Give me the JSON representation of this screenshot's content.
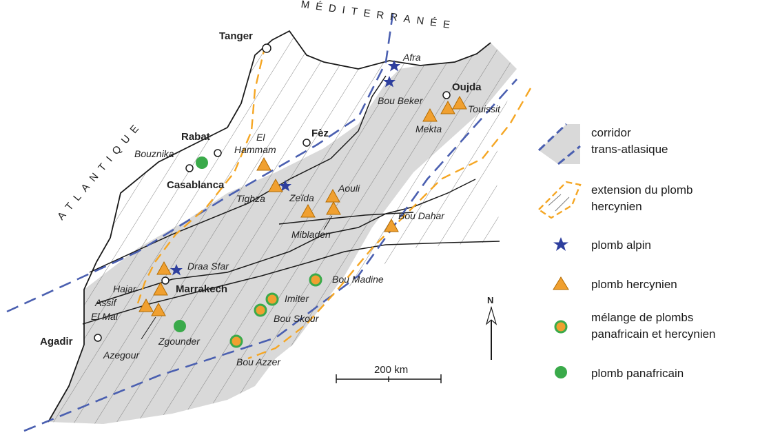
{
  "seas": {
    "mediterranean": "MÉDITERRANÉE",
    "atlantic": "ATLANTIQUE"
  },
  "cities": {
    "tanger": "Tanger",
    "rabat": "Rabat",
    "casablanca": "Casablanca",
    "fez": "Fèz",
    "oujda": "Oujda",
    "marrakech": "Marrakech",
    "agadir": "Agadir"
  },
  "sites": {
    "afra": "Afra",
    "bou_beker": "Bou Beker",
    "touissit": "Touissit",
    "mekta": "Mekta",
    "bouznika": "Bouznika",
    "el": "El",
    "hammam": "Hammam",
    "tighza": "Tighza",
    "zeida": "Zeïda",
    "aouli": "Aouli",
    "mibladen": "Mibladen",
    "bou_dahar": "Bou Dahar",
    "draa_sfar": "Draa Sfar",
    "hajar": "Hajar",
    "assif": "Assif",
    "el_mal": "El Mal",
    "azegour": "Azegour",
    "zgounder": "Zgounder",
    "bou_azzer": "Bou Azzer",
    "imiter": "Imiter",
    "bou_skour": "Bou Skour",
    "bou_madine": "Bou Madine"
  },
  "north_arrow": "N",
  "scale_bar": "200 km",
  "legend": {
    "corridor_1": "corridor",
    "corridor_2": "trans-atlasique",
    "extension_1": "extension du plomb",
    "extension_2": "hercynien",
    "alpine": "plomb alpin",
    "hercynian": "plomb hercynien",
    "mix_1": "mélange  de plombs",
    "mix_2": "panafricain et hercynien",
    "panafrican": "plomb panafricain"
  },
  "colors": {
    "corridor_fill": "#d9d9d9",
    "corridor_border": "#4a5fb0",
    "extension": "#f5a623",
    "triangle": "#f0a030",
    "star": "#2e3f9e",
    "green": "#3aaa4a"
  }
}
